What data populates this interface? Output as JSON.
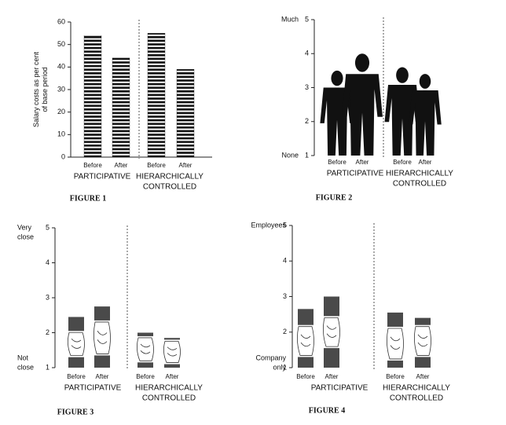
{
  "chart_data": [
    {
      "type": "bar",
      "title": "FIGURE 1",
      "ylabel": [
        "Salary costs as per cent",
        "of base period"
      ],
      "categories": [
        "Before",
        "After",
        "Before",
        "After"
      ],
      "groups": [
        [
          "PARTICIPATIVE"
        ],
        [
          "HIERARCHICALLY",
          "CONTROLLED"
        ]
      ],
      "values": [
        54,
        44,
        55,
        39
      ],
      "color": "#111111",
      "ylim": [
        0,
        60
      ],
      "yticks": [
        0,
        10,
        20,
        30,
        40,
        50,
        60
      ]
    },
    {
      "type": "pictograph",
      "title": "FIGURE 2",
      "ylabel_top": [
        "Much"
      ],
      "ylabel_bottom": [
        "None"
      ],
      "categories": [
        "Before",
        "After",
        "Before",
        "After"
      ],
      "groups": [
        [
          "PARTICIPATIVE"
        ],
        [
          "HIERARCHICALLY",
          "CONTROLLED"
        ]
      ],
      "values": [
        3.5,
        4.0,
        3.6,
        3.4
      ],
      "color": "#111111",
      "ylim": [
        1,
        5
      ],
      "yticks": [
        1,
        2,
        3,
        4,
        5
      ]
    },
    {
      "type": "range",
      "title": "FIGURE 3",
      "ylabel_top": [
        "Very",
        "close"
      ],
      "ylabel_bottom": [
        "Not",
        "close"
      ],
      "categories": [
        "Before",
        "After",
        "Before",
        "After"
      ],
      "groups": [
        [
          "PARTICIPATIVE"
        ],
        [
          "HIERARCHICALLY",
          "CONTROLLED"
        ]
      ],
      "low": [
        1.3,
        1.35,
        1.15,
        1.1
      ],
      "mid": [
        2.05,
        2.35,
        1.9,
        1.8
      ],
      "high": [
        2.45,
        2.75,
        2.0,
        1.85
      ],
      "color": "#4a4a4a",
      "ylim": [
        1,
        5
      ],
      "yticks": [
        1,
        2,
        3,
        4,
        5
      ]
    },
    {
      "type": "range",
      "title": "FIGURE 4",
      "ylabel_top": [
        "Employees"
      ],
      "ylabel_bottom": [
        "Company",
        "only"
      ],
      "categories": [
        "Before",
        "After",
        "Before",
        "After"
      ],
      "groups": [
        [
          "PARTICIPATIVE"
        ],
        [
          "HIERARCHICALLY",
          "CONTROLLED"
        ]
      ],
      "low": [
        1.3,
        1.55,
        1.2,
        1.3
      ],
      "mid": [
        2.2,
        2.45,
        2.15,
        2.2
      ],
      "high": [
        2.65,
        3.0,
        2.55,
        2.4
      ],
      "color": "#4a4a4a",
      "ylim": [
        1,
        5
      ],
      "yticks": [
        1,
        2,
        3,
        4,
        5
      ]
    }
  ]
}
